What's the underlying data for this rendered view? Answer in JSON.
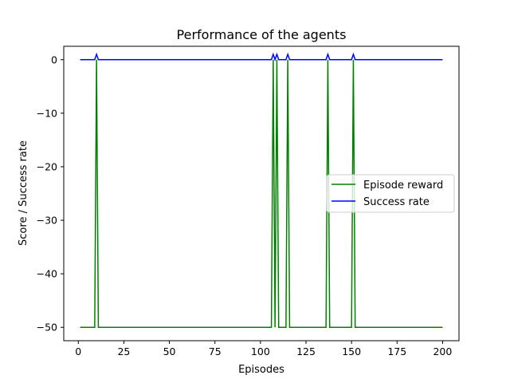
{
  "chart_data": {
    "type": "line",
    "title": "Performance of the agents",
    "xlabel": "Episodes",
    "ylabel": "Score / Success rate",
    "xlim": [
      -8,
      209
    ],
    "ylim": [
      -52.5,
      2.5
    ],
    "xticks": [
      0,
      25,
      50,
      75,
      100,
      125,
      150,
      175,
      200
    ],
    "yticks": [
      0,
      -10,
      -20,
      -30,
      -40,
      -50
    ],
    "ytick_labels": [
      "0",
      "−10",
      "−20",
      "−30",
      "−40",
      "−50"
    ],
    "grid": false,
    "legend_position": "center-right",
    "x_start": 1,
    "x_end": 200,
    "success_episodes": [
      10,
      107,
      109,
      115,
      137,
      151
    ],
    "series": [
      {
        "name": "Episode reward",
        "color": "#008000",
        "default": -50,
        "success_value": 0
      },
      {
        "name": "Success rate",
        "color": "#0000ff",
        "default": 0,
        "success_value": 1
      }
    ]
  }
}
